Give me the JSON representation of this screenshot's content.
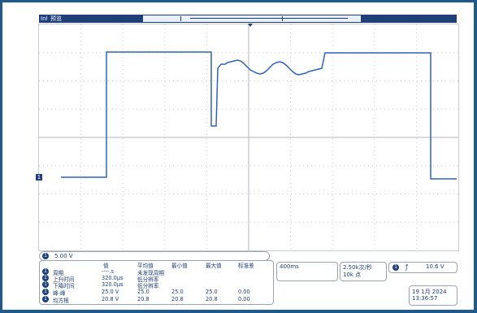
{
  "topbar": {
    "mode_icon": "Inl",
    "mode_label": "预览"
  },
  "channel": {
    "badge": "1",
    "scale": "5.00 V",
    "marker": "1"
  },
  "measurements": {
    "headers": [
      "值",
      "平均值",
      "最小值",
      "最大值",
      "标准差"
    ],
    "rows": [
      {
        "badge": "1",
        "name": "周期",
        "value": "----.s",
        "mean": "未发现周期",
        "min": "",
        "max": "",
        "std": ""
      },
      {
        "badge": "1",
        "name": "上升时间",
        "value": "320.0µs",
        "mean": "低分辨率",
        "min": "",
        "max": "",
        "std": ""
      },
      {
        "badge": "1",
        "name": "下降时间",
        "value": "320.0µs",
        "mean": "低分辨率",
        "min": "",
        "max": "",
        "std": ""
      },
      {
        "badge": "1",
        "name": "峰-峰",
        "value": "25.0 V",
        "mean": "25.0",
        "min": "25.0",
        "max": "25.0",
        "std": "0.00"
      },
      {
        "badge": "1",
        "name": "均方根",
        "value": "20.8 V",
        "mean": "20.8",
        "min": "20.8",
        "max": "20.8",
        "std": "0.00"
      }
    ]
  },
  "timebase": "400ms",
  "sample": {
    "rate": "2.50k次/秒",
    "points": "10k 点"
  },
  "trigger": {
    "badge": "1",
    "slope": "ƒ",
    "level": "10.6 V"
  },
  "datetime": {
    "date": "19 1月 2024",
    "time": "13:36:57"
  },
  "colors": {
    "trace": "#2e63b8",
    "accent": "#1e3f78",
    "border": "#1f5a8c"
  }
}
